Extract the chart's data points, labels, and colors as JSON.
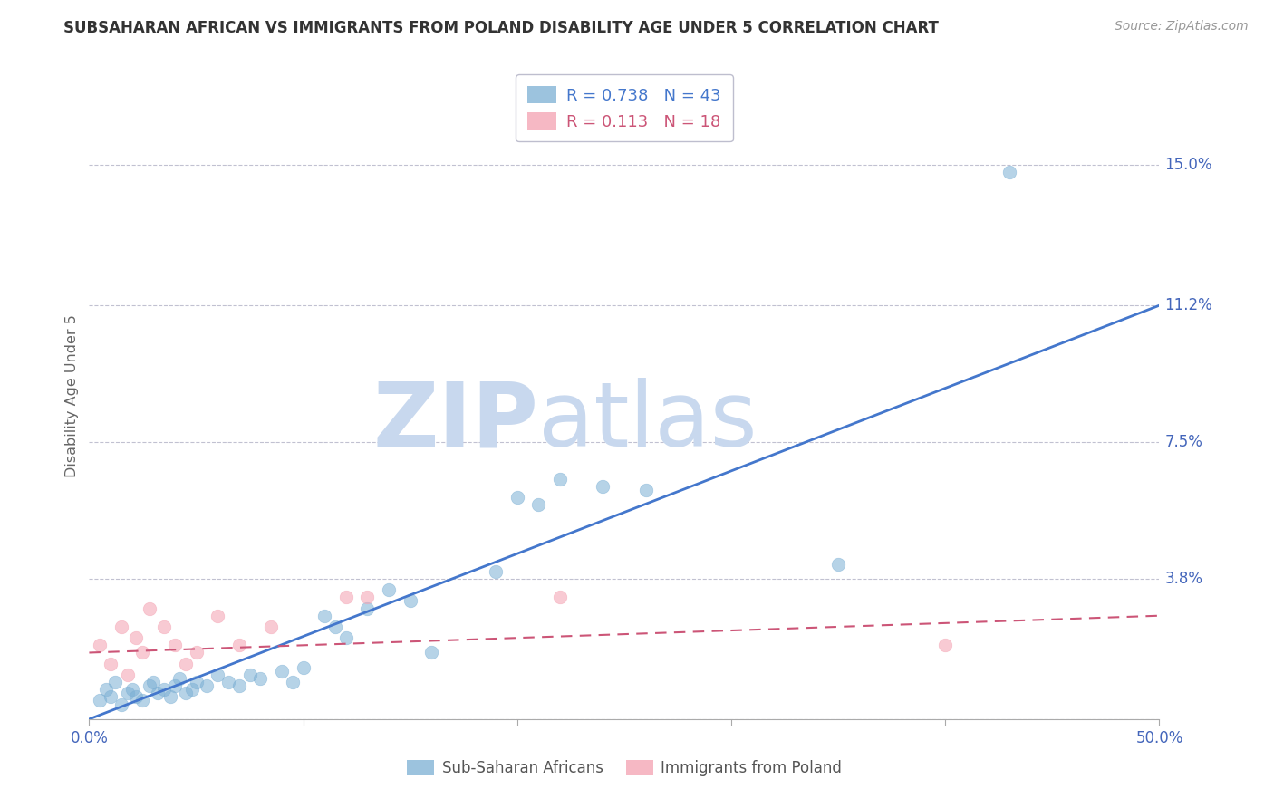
{
  "title": "SUBSAHARAN AFRICAN VS IMMIGRANTS FROM POLAND DISABILITY AGE UNDER 5 CORRELATION CHART",
  "source": "Source: ZipAtlas.com",
  "ylabel": "Disability Age Under 5",
  "xlim": [
    0.0,
    0.5
  ],
  "ylim": [
    0.0,
    0.175
  ],
  "xtick_positions": [
    0.0,
    0.1,
    0.2,
    0.3,
    0.4,
    0.5
  ],
  "xtick_labels": [
    "0.0%",
    "",
    "",
    "",
    "",
    "50.0%"
  ],
  "ytick_vals": [
    0.0,
    0.038,
    0.075,
    0.112,
    0.15
  ],
  "ytick_labels": [
    "",
    "3.8%",
    "7.5%",
    "11.2%",
    "15.0%"
  ],
  "blue_color": "#7BAFD4",
  "pink_color": "#F4A0B0",
  "blue_line_color": "#4477CC",
  "pink_line_color": "#CC5577",
  "grid_color": "#BBBBCC",
  "background_color": "#FFFFFF",
  "label_color": "#4466BB",
  "legend_R_blue": "0.738",
  "legend_N_blue": "43",
  "legend_R_pink": "0.113",
  "legend_N_pink": "18",
  "legend_label_blue": "Sub-Saharan Africans",
  "legend_label_pink": "Immigrants from Poland",
  "blue_scatter_x": [
    0.005,
    0.008,
    0.01,
    0.012,
    0.015,
    0.018,
    0.02,
    0.022,
    0.025,
    0.028,
    0.03,
    0.032,
    0.035,
    0.038,
    0.04,
    0.042,
    0.045,
    0.048,
    0.05,
    0.055,
    0.06,
    0.065,
    0.07,
    0.075,
    0.08,
    0.09,
    0.095,
    0.1,
    0.11,
    0.115,
    0.12,
    0.13,
    0.14,
    0.15,
    0.16,
    0.19,
    0.2,
    0.21,
    0.22,
    0.24,
    0.26,
    0.35,
    0.43
  ],
  "blue_scatter_y": [
    0.005,
    0.008,
    0.006,
    0.01,
    0.004,
    0.007,
    0.008,
    0.006,
    0.005,
    0.009,
    0.01,
    0.007,
    0.008,
    0.006,
    0.009,
    0.011,
    0.007,
    0.008,
    0.01,
    0.009,
    0.012,
    0.01,
    0.009,
    0.012,
    0.011,
    0.013,
    0.01,
    0.014,
    0.028,
    0.025,
    0.022,
    0.03,
    0.035,
    0.032,
    0.018,
    0.04,
    0.06,
    0.058,
    0.065,
    0.063,
    0.062,
    0.042,
    0.148
  ],
  "pink_scatter_x": [
    0.005,
    0.01,
    0.015,
    0.018,
    0.022,
    0.025,
    0.028,
    0.035,
    0.04,
    0.045,
    0.05,
    0.06,
    0.07,
    0.085,
    0.12,
    0.13,
    0.22,
    0.4
  ],
  "pink_scatter_y": [
    0.02,
    0.015,
    0.025,
    0.012,
    0.022,
    0.018,
    0.03,
    0.025,
    0.02,
    0.015,
    0.018,
    0.028,
    0.02,
    0.025,
    0.033,
    0.033,
    0.033,
    0.02
  ],
  "blue_trend_x": [
    0.0,
    0.5
  ],
  "blue_trend_y": [
    0.0,
    0.112
  ],
  "pink_trend_x": [
    0.0,
    0.5
  ],
  "pink_trend_y": [
    0.018,
    0.028
  ],
  "watermark_zip_color": "#C8D8EE",
  "watermark_atlas_color": "#C8D8EE"
}
